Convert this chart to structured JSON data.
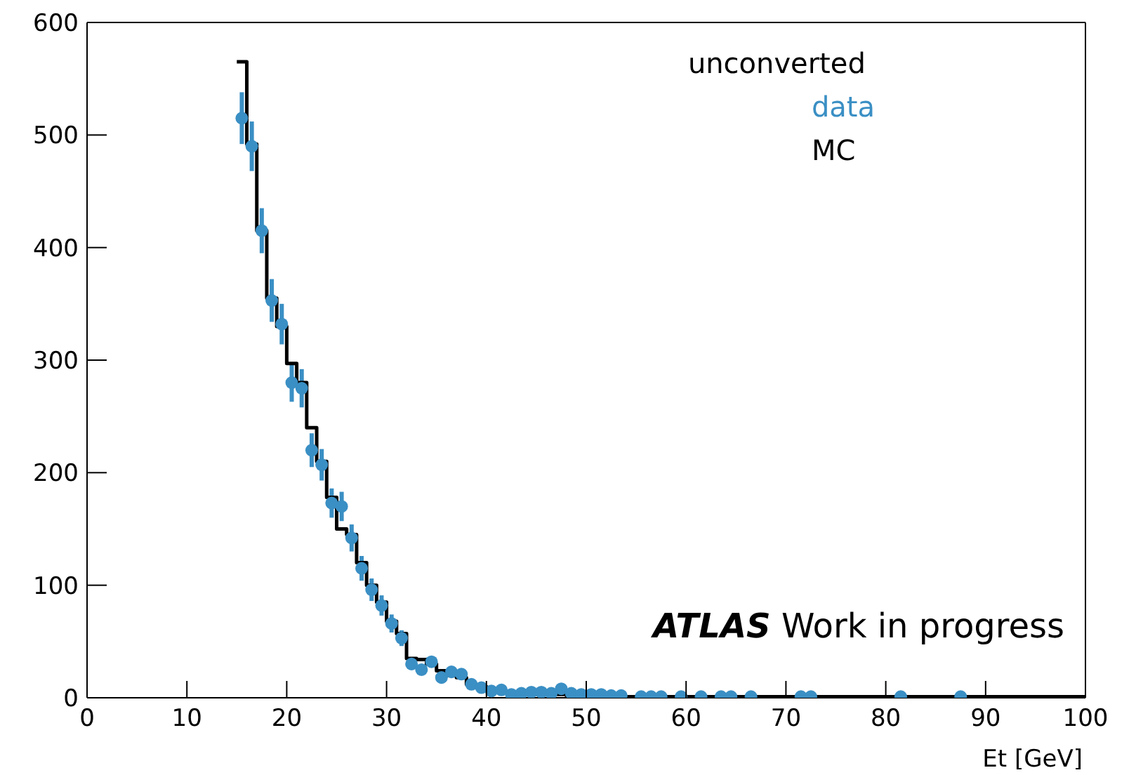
{
  "chart_data": {
    "type": "scatter",
    "xlabel": "Et [GeV]",
    "legend_title": "unconverted",
    "legend": "top right",
    "grid": false,
    "xlim": [
      0,
      100
    ],
    "xticks": [
      0,
      10,
      20,
      30,
      40,
      50,
      60,
      70,
      80,
      90,
      100
    ],
    "ylim": [
      0,
      600
    ],
    "yticks": [
      0,
      100,
      200,
      300,
      400,
      500,
      600
    ],
    "annotations": [
      "ATLAS Work in progress"
    ],
    "series": [
      {
        "name": "data",
        "marker": "circle",
        "color": "#3a8fc4",
        "x": [
          15.5,
          16.5,
          17.5,
          18.5,
          19.5,
          20.5,
          21.5,
          22.5,
          23.5,
          24.5,
          25.5,
          26.5,
          27.5,
          28.5,
          29.5,
          30.5,
          31.5,
          32.5,
          33.5,
          34.5,
          35.5,
          36.5,
          37.5,
          38.5,
          39.5,
          40.5,
          41.5,
          42.5,
          43.5,
          44.5,
          45.5,
          46.5,
          47.5,
          48.5,
          49.5,
          50.5,
          51.5,
          52.5,
          53.5,
          55.5,
          56.5,
          57.5,
          59.5,
          61.5,
          63.5,
          64.5,
          66.5,
          71.5,
          72.5,
          81.5,
          87.5
        ],
        "values": [
          515,
          490,
          415,
          353,
          332,
          280,
          275,
          220,
          207,
          173,
          170,
          142,
          115,
          96,
          82,
          66,
          53,
          30,
          25,
          32,
          18,
          23,
          21,
          12,
          9,
          6,
          7,
          3,
          4,
          5,
          5,
          4,
          8,
          4,
          3,
          3,
          3,
          2,
          2,
          1,
          1,
          1,
          1,
          1,
          1,
          1,
          1,
          1,
          1,
          1,
          1
        ],
        "errors": [
          23,
          22,
          20,
          19,
          18,
          17,
          17,
          15,
          14,
          13,
          13,
          12,
          11,
          10,
          9,
          8,
          7,
          null,
          null,
          null,
          null,
          null,
          null,
          null,
          null,
          null,
          null,
          null,
          null,
          null,
          null,
          null,
          null,
          null,
          null,
          null,
          null,
          null,
          null,
          null,
          null,
          null,
          null,
          null,
          null,
          null,
          null,
          null,
          null,
          null,
          null
        ]
      },
      {
        "name": "MC",
        "type": "step",
        "marker": "none",
        "color": "#000000",
        "x": [
          15,
          16,
          17,
          18,
          19,
          20,
          21,
          22,
          23,
          24,
          25,
          26,
          27,
          28,
          29,
          30,
          31,
          32,
          33,
          34,
          35,
          36,
          37,
          38,
          39,
          40,
          41,
          42,
          43,
          44,
          45,
          46,
          47,
          48,
          49,
          50,
          51,
          52,
          53,
          54,
          100
        ],
        "values": [
          565,
          492,
          415,
          355,
          330,
          297,
          280,
          240,
          210,
          178,
          150,
          145,
          120,
          100,
          85,
          68,
          57,
          35,
          34,
          30,
          24,
          20,
          18,
          12,
          10,
          8,
          6,
          5,
          4,
          4,
          3,
          3,
          3,
          2,
          2,
          2,
          2,
          1,
          1,
          1,
          1
        ]
      }
    ]
  }
}
